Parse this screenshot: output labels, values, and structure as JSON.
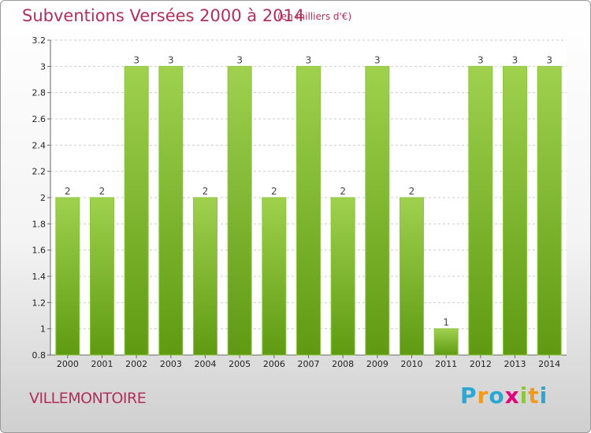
{
  "header": {
    "title": "Subventions Versées 2000 à 2014",
    "unit": "(en milliers d'€)"
  },
  "footer": {
    "place": "VILLEMONTOIRE",
    "logo_letters": [
      "P",
      "r",
      "o",
      "x",
      "i",
      "t",
      "i"
    ],
    "logo_colors": [
      "#2aa7d4",
      "#f19a1c",
      "#2aa7d4",
      "#e3007b",
      "#8cc63f",
      "#f19a1c",
      "#2aa7d4"
    ]
  },
  "chart_data": {
    "type": "bar",
    "categories": [
      "2000",
      "2001",
      "2002",
      "2003",
      "2004",
      "2005",
      "2006",
      "2007",
      "2008",
      "2009",
      "2010",
      "2011",
      "2012",
      "2013",
      "2014"
    ],
    "values": [
      2,
      2,
      3,
      3,
      2,
      3,
      2,
      3,
      2,
      3,
      2,
      1,
      3,
      3,
      3
    ],
    "data_labels": [
      "2",
      "2",
      "3",
      "3",
      "2",
      "3",
      "2",
      "3",
      "2",
      "3",
      "2",
      "1",
      "3",
      "3",
      "3"
    ],
    "yticks": [
      0.8,
      1,
      1.2,
      1.4,
      1.6,
      1.8,
      2,
      2.2,
      2.4,
      2.6,
      2.8,
      3,
      3.2
    ],
    "ytick_labels": [
      "0.8",
      "1",
      "1.2",
      "1.4",
      "1.6",
      "1.8",
      "2",
      "2.2",
      "2.4",
      "2.6",
      "2.8",
      "3",
      "3.2"
    ],
    "ylim": [
      0.8,
      3.2
    ],
    "grid": true,
    "bar_color_top": "#9fd14e",
    "bar_color_bottom": "#5f9a12",
    "bar_edge": "#8dc63f"
  }
}
